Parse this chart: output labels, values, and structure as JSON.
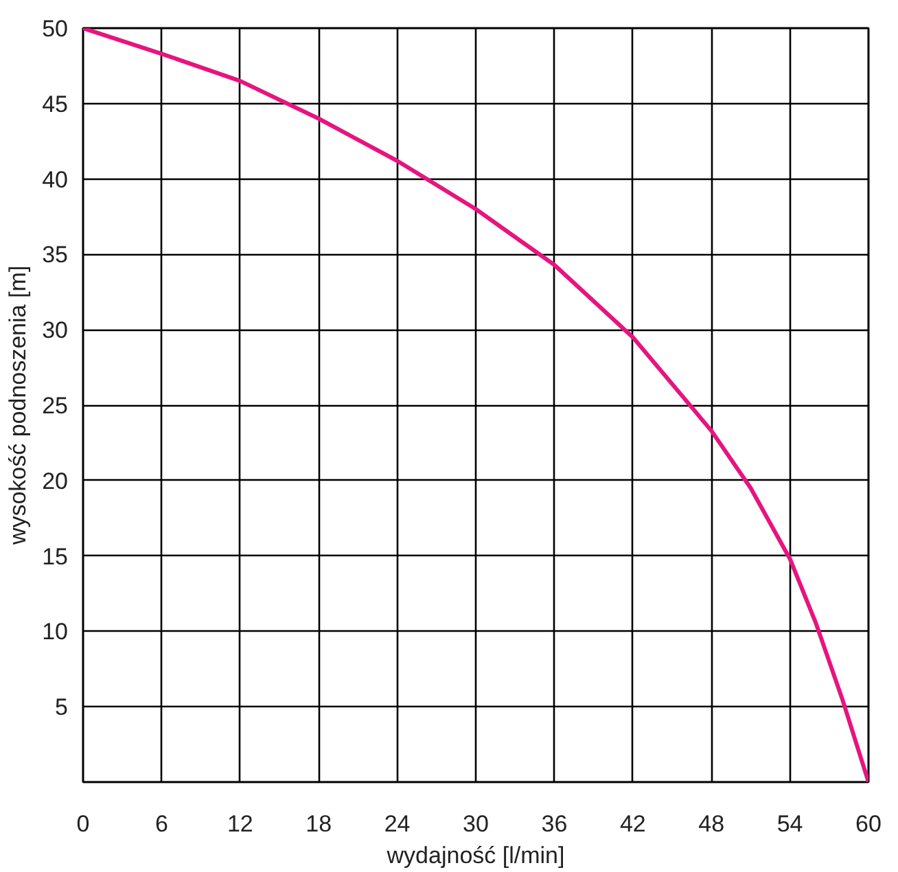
{
  "chart_data": {
    "type": "line",
    "xlabel": "wydajność [l/min]",
    "ylabel": "wysokość podnoszenia [m]",
    "x": [
      0,
      6,
      12,
      18,
      24,
      30,
      36,
      42,
      48,
      51,
      54,
      56,
      58,
      60
    ],
    "series": [
      {
        "color": "#e5157f",
        "values": [
          50,
          48.3,
          46.5,
          44,
          41.2,
          38,
          34.3,
          29.5,
          23.3,
          19.5,
          14.8,
          10.5,
          5.5,
          0
        ]
      }
    ],
    "xlim": [
      0,
      60
    ],
    "ylim": [
      0,
      50
    ],
    "xticks": [
      0,
      6,
      12,
      18,
      24,
      30,
      36,
      42,
      48,
      54,
      60
    ],
    "yticks": [
      {
        "value": 0,
        "label": null
      },
      5,
      10,
      15,
      20,
      25,
      30,
      35,
      40,
      45,
      50
    ],
    "grid": true,
    "marker": "none",
    "line_style": "solid"
  }
}
